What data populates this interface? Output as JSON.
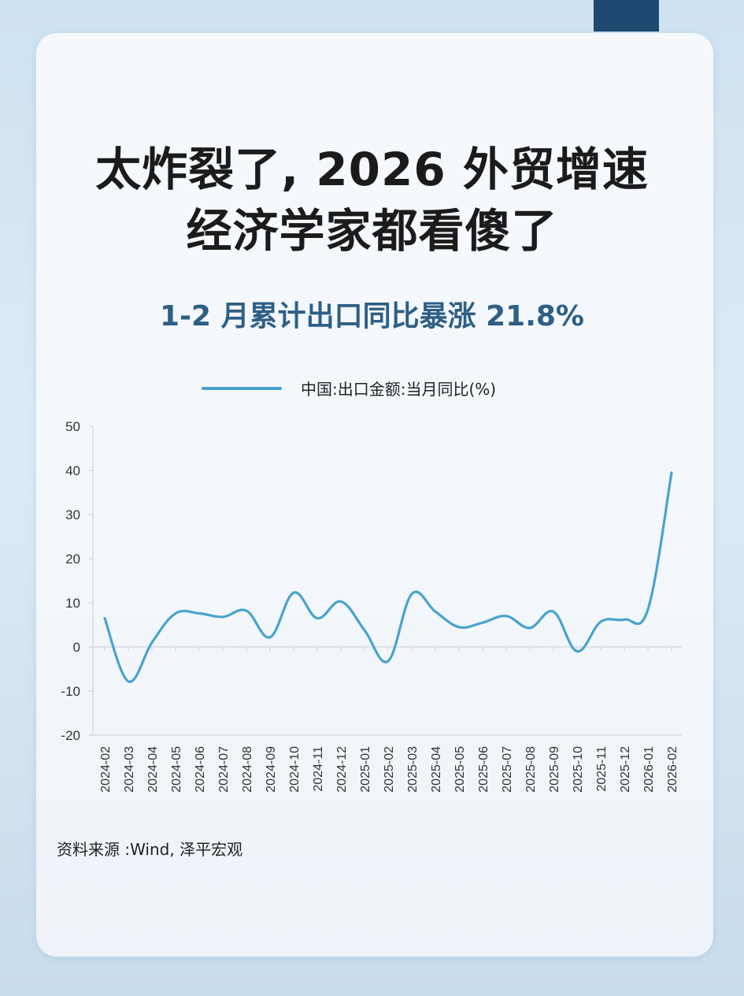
{
  "title_line1": "太炸裂了, 2026 外贸增速",
  "title_line2": "经济学家都看傻了",
  "subtitle": "1-2 月累计出口同比暴涨 21.8%",
  "source": "资料来源 :Wind, 泽平宏观",
  "colors": {
    "line": "#4aa3cc",
    "title": "#1b1b1b",
    "subtitle": "#2e5f86",
    "accent_tab": "#1d4a6e"
  },
  "chart_data": {
    "type": "line",
    "categories": [
      "2024-02",
      "2024-03",
      "2024-04",
      "2024-05",
      "2024-06",
      "2024-07",
      "2024-08",
      "2024-09",
      "2024-10",
      "2024-11",
      "2024-12",
      "2025-01",
      "2025-02",
      "2025-03",
      "2025-04",
      "2025-05",
      "2025-06",
      "2025-07",
      "2025-08",
      "2025-09",
      "2025-10",
      "2025-11",
      "2025-12",
      "2026-01",
      "2026-02"
    ],
    "series": [
      {
        "name": "中国:出口金额:当月同比(%)",
        "values": [
          6.5,
          -7.8,
          1.0,
          7.6,
          7.6,
          6.8,
          8.2,
          2.2,
          12.3,
          6.5,
          10.3,
          3.8,
          -3.2,
          12.0,
          8.0,
          4.5,
          5.5,
          7.0,
          4.3,
          8.0,
          -1.0,
          5.7,
          6.2,
          8.5,
          39.5
        ]
      }
    ],
    "ylim": [
      -20,
      50
    ],
    "yticks": [
      -20,
      -10,
      0,
      10,
      20,
      30,
      40,
      50
    ],
    "legend": "top",
    "grid": false
  }
}
